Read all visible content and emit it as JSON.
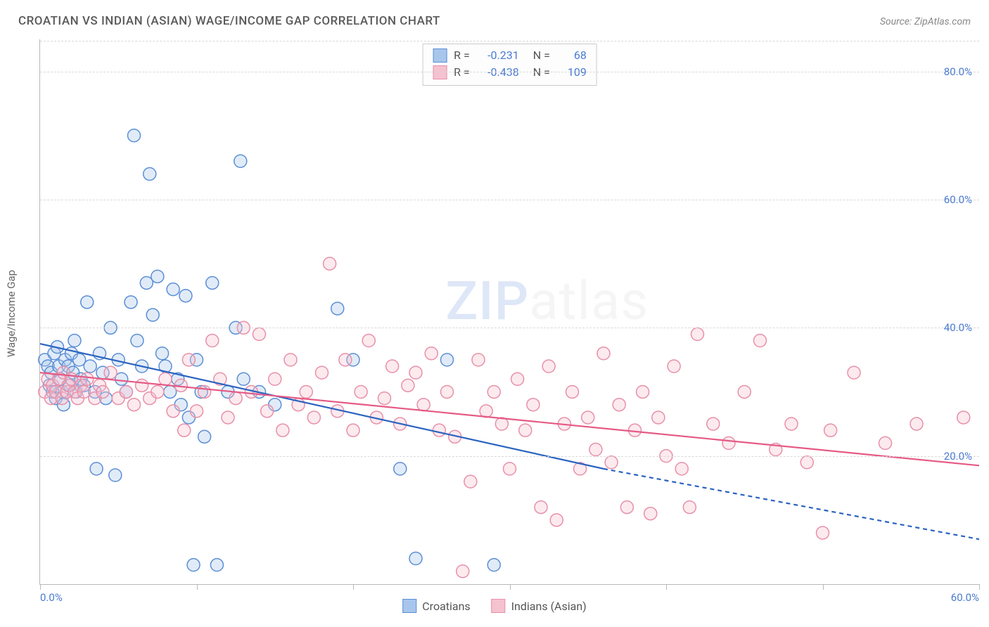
{
  "title": "CROATIAN VS INDIAN (ASIAN) WAGE/INCOME GAP CORRELATION CHART",
  "source_label": "Source: ",
  "source_name": "ZipAtlas.com",
  "ylabel": "Wage/Income Gap",
  "watermark_a": "ZIP",
  "watermark_b": "atlas",
  "chart": {
    "type": "scatter",
    "xlim": [
      0,
      60
    ],
    "ylim": [
      0,
      85
    ],
    "xticks": [
      0,
      10,
      20,
      30,
      40,
      50,
      60
    ],
    "xtick_labels_shown": {
      "0": "0.0%",
      "60": "60.0%"
    },
    "yticks": [
      20,
      40,
      60,
      80
    ],
    "ytick_labels": [
      "20.0%",
      "40.0%",
      "60.0%",
      "80.0%"
    ],
    "grid_color": "#d8d8d8",
    "axis_color": "#b8b8b8",
    "background_color": "#ffffff",
    "tick_color": "#4a7bd0",
    "marker_radius": 9,
    "marker_stroke_width": 1.5,
    "marker_fill_opacity": 0.35,
    "trend_line_width": 2.2
  },
  "series": {
    "croatians": {
      "label": "Croatians",
      "color_stroke": "#5b8fd6",
      "color_fill": "#a8c6ec",
      "R": "-0.231",
      "N": "68",
      "trend": {
        "x1": 0,
        "y1": 37.5,
        "x2": 36,
        "y2": 18,
        "color": "#2b63c0"
      },
      "trend_ext": {
        "x1": 36,
        "y1": 18,
        "x2": 60,
        "y2": 7,
        "dash": "6,5"
      },
      "points": [
        [
          0.3,
          35
        ],
        [
          0.5,
          34
        ],
        [
          0.6,
          31
        ],
        [
          0.7,
          33
        ],
        [
          0.8,
          30
        ],
        [
          0.9,
          36
        ],
        [
          1.0,
          29
        ],
        [
          1.1,
          37
        ],
        [
          1.2,
          34
        ],
        [
          1.3,
          32
        ],
        [
          1.4,
          30
        ],
        [
          1.5,
          28
        ],
        [
          1.6,
          35
        ],
        [
          1.8,
          34
        ],
        [
          1.9,
          31
        ],
        [
          2.0,
          36
        ],
        [
          2.1,
          33
        ],
        [
          2.2,
          38
        ],
        [
          2.3,
          30
        ],
        [
          2.5,
          35
        ],
        [
          2.6,
          32
        ],
        [
          2.8,
          31
        ],
        [
          3.0,
          44
        ],
        [
          3.2,
          34
        ],
        [
          3.5,
          30
        ],
        [
          3.6,
          18
        ],
        [
          3.8,
          36
        ],
        [
          4.0,
          33
        ],
        [
          4.2,
          29
        ],
        [
          4.5,
          40
        ],
        [
          4.8,
          17
        ],
        [
          5.0,
          35
        ],
        [
          5.2,
          32
        ],
        [
          5.5,
          30
        ],
        [
          5.8,
          44
        ],
        [
          6.0,
          70
        ],
        [
          6.2,
          38
        ],
        [
          6.5,
          34
        ],
        [
          6.8,
          47
        ],
        [
          7.0,
          64
        ],
        [
          7.2,
          42
        ],
        [
          7.5,
          48
        ],
        [
          7.8,
          36
        ],
        [
          8.0,
          34
        ],
        [
          8.3,
          30
        ],
        [
          8.5,
          46
        ],
        [
          8.8,
          32
        ],
        [
          9.0,
          28
        ],
        [
          9.3,
          45
        ],
        [
          9.5,
          26
        ],
        [
          9.8,
          3
        ],
        [
          10.0,
          35
        ],
        [
          10.3,
          30
        ],
        [
          10.5,
          23
        ],
        [
          11.0,
          47
        ],
        [
          11.3,
          3
        ],
        [
          12.0,
          30
        ],
        [
          12.5,
          40
        ],
        [
          12.8,
          66
        ],
        [
          13.0,
          32
        ],
        [
          14.0,
          30
        ],
        [
          15.0,
          28
        ],
        [
          19.0,
          43
        ],
        [
          20.0,
          35
        ],
        [
          23.0,
          18
        ],
        [
          24.0,
          4
        ],
        [
          26.0,
          35
        ],
        [
          29.0,
          3
        ]
      ]
    },
    "indians": {
      "label": "Indians (Asian)",
      "color_stroke": "#e890a8",
      "color_fill": "#f5c2d0",
      "R": "-0.438",
      "N": "109",
      "trend": {
        "x1": 0,
        "y1": 33,
        "x2": 60,
        "y2": 18.5,
        "color": "#e55a85"
      },
      "points": [
        [
          0.3,
          30
        ],
        [
          0.5,
          32
        ],
        [
          0.7,
          29
        ],
        [
          0.8,
          31
        ],
        [
          1.0,
          30
        ],
        [
          1.2,
          32
        ],
        [
          1.4,
          29
        ],
        [
          1.5,
          33
        ],
        [
          1.7,
          30
        ],
        [
          1.8,
          31
        ],
        [
          2.0,
          32
        ],
        [
          2.2,
          30
        ],
        [
          2.4,
          29
        ],
        [
          2.6,
          31
        ],
        [
          2.8,
          30
        ],
        [
          3.0,
          32
        ],
        [
          3.5,
          29
        ],
        [
          3.8,
          31
        ],
        [
          4.0,
          30
        ],
        [
          4.5,
          33
        ],
        [
          5.0,
          29
        ],
        [
          5.5,
          30
        ],
        [
          6.0,
          28
        ],
        [
          6.5,
          31
        ],
        [
          7.0,
          29
        ],
        [
          7.5,
          30
        ],
        [
          8.0,
          32
        ],
        [
          8.5,
          27
        ],
        [
          9.0,
          31
        ],
        [
          9.2,
          24
        ],
        [
          9.5,
          35
        ],
        [
          10.0,
          27
        ],
        [
          10.5,
          30
        ],
        [
          11.0,
          38
        ],
        [
          11.5,
          32
        ],
        [
          12.0,
          26
        ],
        [
          12.5,
          29
        ],
        [
          13.0,
          40
        ],
        [
          13.5,
          30
        ],
        [
          14.0,
          39
        ],
        [
          14.5,
          27
        ],
        [
          15.0,
          32
        ],
        [
          15.5,
          24
        ],
        [
          16.0,
          35
        ],
        [
          16.5,
          28
        ],
        [
          17.0,
          30
        ],
        [
          17.5,
          26
        ],
        [
          18.0,
          33
        ],
        [
          18.5,
          50
        ],
        [
          19.0,
          27
        ],
        [
          19.5,
          35
        ],
        [
          20.0,
          24
        ],
        [
          20.5,
          30
        ],
        [
          21.0,
          38
        ],
        [
          21.5,
          26
        ],
        [
          22.0,
          29
        ],
        [
          22.5,
          34
        ],
        [
          23.0,
          25
        ],
        [
          23.5,
          31
        ],
        [
          24.0,
          33
        ],
        [
          24.5,
          28
        ],
        [
          25.0,
          36
        ],
        [
          25.5,
          24
        ],
        [
          26.0,
          30
        ],
        [
          26.5,
          23
        ],
        [
          27.0,
          2
        ],
        [
          27.5,
          16
        ],
        [
          28.0,
          35
        ],
        [
          28.5,
          27
        ],
        [
          29.0,
          30
        ],
        [
          29.5,
          25
        ],
        [
          30.0,
          18
        ],
        [
          30.5,
          32
        ],
        [
          31.0,
          24
        ],
        [
          31.5,
          28
        ],
        [
          32.0,
          12
        ],
        [
          32.5,
          34
        ],
        [
          33.0,
          10
        ],
        [
          33.5,
          25
        ],
        [
          34.0,
          30
        ],
        [
          34.5,
          18
        ],
        [
          35.0,
          26
        ],
        [
          35.5,
          21
        ],
        [
          36.0,
          36
        ],
        [
          36.5,
          19
        ],
        [
          37.0,
          28
        ],
        [
          37.5,
          12
        ],
        [
          38.0,
          24
        ],
        [
          38.5,
          30
        ],
        [
          39.0,
          11
        ],
        [
          39.5,
          26
        ],
        [
          40.0,
          20
        ],
        [
          40.5,
          34
        ],
        [
          41.0,
          18
        ],
        [
          41.5,
          12
        ],
        [
          42.0,
          39
        ],
        [
          43.0,
          25
        ],
        [
          44.0,
          22
        ],
        [
          45.0,
          30
        ],
        [
          46.0,
          38
        ],
        [
          47.0,
          21
        ],
        [
          48.0,
          25
        ],
        [
          49.0,
          19
        ],
        [
          50.0,
          8
        ],
        [
          50.5,
          24
        ],
        [
          52.0,
          33
        ],
        [
          54.0,
          22
        ],
        [
          56.0,
          25
        ],
        [
          59.0,
          26
        ]
      ]
    }
  },
  "legend_box": {
    "r_label": "R =",
    "n_label": "N ="
  },
  "bottom_legend": {
    "items": [
      "croatians",
      "indians"
    ]
  }
}
